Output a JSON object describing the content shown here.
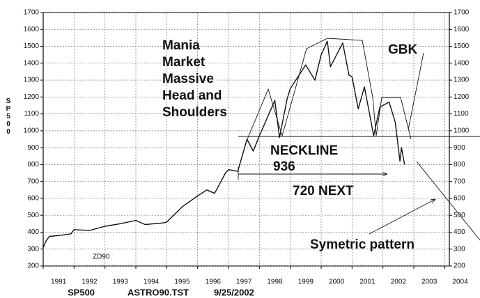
{
  "chart_data": {
    "type": "line",
    "ylabel": "SP500",
    "annotations": [
      "Mania",
      "Market",
      "Massive",
      "Head and",
      "Shoulders",
      "GBK",
      "NECKLINE",
      "936",
      "720 NEXT",
      "Symetric pattern",
      "ZD90"
    ],
    "footer": [
      "SP500",
      "ASTRO90.TST",
      "9/25/2002"
    ],
    "xlim": [
      1991,
      2004.15
    ],
    "xticks": [
      1991,
      1992,
      1993,
      1994,
      1995,
      1996,
      1997,
      1998,
      1999,
      2000,
      2001,
      2002,
      2003,
      2004
    ],
    "ylim": [
      200,
      1700
    ],
    "yticks": [
      200,
      300,
      400,
      500,
      600,
      700,
      800,
      900,
      1000,
      1100,
      1200,
      1300,
      1400,
      1500,
      1600,
      1700
    ],
    "grid": true,
    "series": [
      {
        "name": "SP500",
        "color": "#111111",
        "x": [
          1991.0,
          1991.1,
          1991.2,
          1991.5,
          1991.9,
          1992.0,
          1992.5,
          1993.0,
          1993.5,
          1994.0,
          1994.3,
          1994.9,
          1995.0,
          1995.5,
          1996.0,
          1996.3,
          1996.55,
          1996.9,
          1997.0,
          1997.3,
          1997.6,
          1997.8,
          1998.0,
          1998.5,
          1998.65,
          1998.9,
          1999.0,
          1999.5,
          1999.8,
          2000.0,
          2000.2,
          2000.3,
          2000.7,
          2000.9,
          2001.0,
          2001.2,
          2001.4,
          2001.7,
          2001.9,
          2002.2,
          2002.4,
          2002.55,
          2002.6,
          2002.7
        ],
        "values": [
          310,
          350,
          375,
          380,
          390,
          415,
          410,
          435,
          450,
          470,
          445,
          455,
          460,
          550,
          615,
          650,
          630,
          750,
          770,
          760,
          950,
          880,
          970,
          1180,
          960,
          1190,
          1250,
          1390,
          1300,
          1450,
          1530,
          1380,
          1520,
          1330,
          1320,
          1130,
          1260,
          970,
          1140,
          1170,
          1050,
          820,
          900,
          800
        ]
      }
    ]
  }
}
